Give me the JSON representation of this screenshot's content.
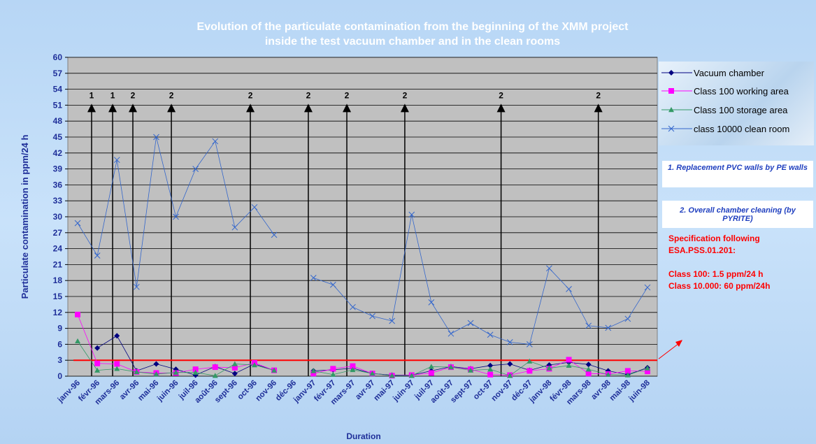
{
  "chart_data": {
    "type": "line",
    "title": [
      "Evolution of the particulate contamination from the beginning of the XMM project",
      "inside the test vacuum chamber and in the clean rooms"
    ],
    "y_label": "Particulate contamination in ppm/24 h",
    "x_label": "Duration",
    "categories": [
      "janv-96",
      "févr-96",
      "mars-96",
      "avr-96",
      "mai-96",
      "juin-96",
      "juil-96",
      "août-96",
      "sept-96",
      "oct-96",
      "nov-96",
      "déc-96",
      "janv-97",
      "févr-97",
      "mars-97",
      "avr-97",
      "mai-97",
      "juin-97",
      "juil-97",
      "août-97",
      "sept-97",
      "oct-97",
      "nov-97",
      "déc-97",
      "janv-98",
      "févr-98",
      "mars-98",
      "avr-98",
      "mai-98",
      "juin-98"
    ],
    "series": [
      {
        "name": "Vacuum chamber",
        "color": "#000080",
        "marker": "diamond",
        "values": [
          null,
          5.3,
          7.6,
          1,
          2.3,
          1.3,
          0.2,
          1.8,
          0.5,
          2.3,
          1.1,
          null,
          1,
          1.2,
          1.5,
          0.5,
          0.2,
          0.2,
          1,
          1.8,
          1.4,
          2,
          2.3,
          1.1,
          2.1,
          2.6,
          2.2,
          1,
          0.3,
          1.6
        ]
      },
      {
        "name": "Class 100 working area",
        "color": "#ff00ff",
        "marker": "square",
        "values": [
          11.6,
          2.4,
          2.3,
          0.8,
          0.6,
          0.6,
          1.3,
          1.7,
          1.6,
          2.5,
          1.1,
          null,
          0.5,
          1.4,
          1.9,
          0.5,
          0.1,
          0.2,
          0.6,
          1.7,
          1.3,
          0.3,
          0.2,
          1,
          1.4,
          3.1,
          0.5,
          0.4,
          1,
          0.9
        ]
      },
      {
        "name": "Class 100 storage area",
        "color": "#339966",
        "marker": "triangle",
        "values": [
          6.6,
          1.1,
          1.4,
          0.8,
          0.4,
          0.7,
          0.7,
          0.1,
          2.3,
          2.1,
          1.1,
          null,
          1,
          0.3,
          1.2,
          0.5,
          0.1,
          0.1,
          1.8,
          1.7,
          1.1,
          1.3,
          0.1,
          2.8,
          1.5,
          2,
          1.3,
          0.3,
          0.2,
          1.5
        ]
      },
      {
        "name": "class 10000 clean room",
        "color": "#3366cc",
        "marker": "x",
        "values": [
          28.8,
          22.7,
          40.7,
          16.8,
          45,
          30,
          39,
          44.2,
          28,
          31.8,
          26.6,
          null,
          18.5,
          17.2,
          13,
          11.3,
          10.4,
          30.4,
          13.9,
          8,
          10,
          7.8,
          6.4,
          6,
          20.3,
          16.4,
          9.5,
          9.1,
          10.8,
          16.7
        ]
      }
    ],
    "ylim": [
      0,
      60
    ],
    "yticks": [
      0,
      3,
      6,
      9,
      12,
      15,
      18,
      21,
      24,
      27,
      30,
      33,
      36,
      39,
      42,
      45,
      48,
      51,
      54,
      57,
      60
    ],
    "grid": true,
    "legend": "right",
    "annotations": [
      {
        "label": "1",
        "x": 0.71,
        "y": 51
      },
      {
        "label": "1",
        "x": 1.78,
        "y": 51
      },
      {
        "label": "2",
        "x": 2.81,
        "y": 51
      },
      {
        "label": "2",
        "x": 4.77,
        "y": 51
      },
      {
        "label": "2",
        "x": 8.79,
        "y": 51
      },
      {
        "label": "2",
        "x": 11.74,
        "y": 51
      },
      {
        "label": "2",
        "x": 13.7,
        "y": 51
      },
      {
        "label": "2",
        "x": 16.65,
        "y": 51
      },
      {
        "label": "2",
        "x": 21.55,
        "y": 51
      },
      {
        "label": "2",
        "x": 26.5,
        "y": 51
      }
    ],
    "specification_line": {
      "value": 3,
      "color": "#ff0000"
    },
    "notes": [
      "1. Replacement PVC walls by PE walls",
      "2. Overall chamber cleaning (by PYRITE)"
    ],
    "specification": [
      "Specification following",
      "ESA.PSS.01.201:",
      "Class 100: 1.5 ppm/24 h",
      "Class 10.000: 60 ppm/24h"
    ]
  }
}
